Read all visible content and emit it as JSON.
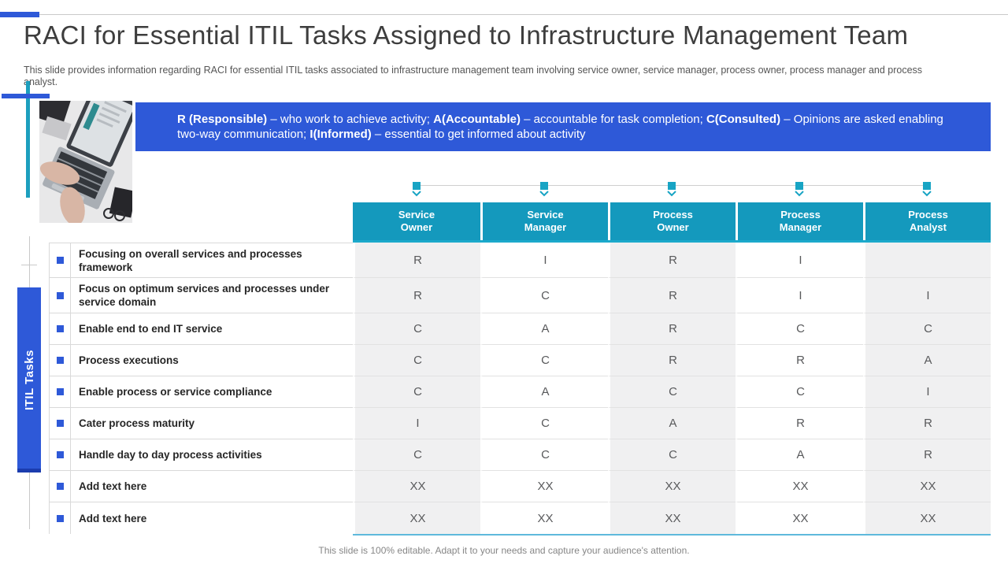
{
  "slide": {
    "title": "RACI for Essential ITIL Tasks Assigned to Infrastructure Management Team",
    "subtitle": "This slide provides information regarding RACI for essential ITIL tasks associated to infrastructure management team involving service owner, service manager, process owner, process manager and process analyst.",
    "footer": "This slide is 100% editable. Adapt it to your needs and capture your audience's attention."
  },
  "banner": {
    "parts": [
      {
        "bold": true,
        "text": "R (Responsible)"
      },
      {
        "bold": false,
        "text": " – who work to achieve activity; "
      },
      {
        "bold": true,
        "text": "A(Accountable)"
      },
      {
        "bold": false,
        "text": " – accountable for task completion; "
      },
      {
        "bold": true,
        "text": "C(Consulted)"
      },
      {
        "bold": false,
        "text": " – Opinions are asked enabling two-way communication; "
      },
      {
        "bold": true,
        "text": "I(Informed)"
      },
      {
        "bold": false,
        "text": " – essential to get informed about activity"
      }
    ]
  },
  "side_label": "ITIL Tasks",
  "table": {
    "columns": [
      {
        "line1": "Service",
        "line2": "Owner"
      },
      {
        "line1": "Service",
        "line2": "Manager"
      },
      {
        "line1": "Process",
        "line2": "Owner"
      },
      {
        "line1": "Process",
        "line2": "Manager"
      },
      {
        "line1": "Process",
        "line2": "Analyst"
      }
    ],
    "rows": [
      {
        "label": "Focusing on overall services and processes framework",
        "values": [
          "R",
          "I",
          "R",
          "I",
          ""
        ]
      },
      {
        "label": "Focus on optimum services and processes under service domain",
        "values": [
          "R",
          "C",
          "R",
          "I",
          "I"
        ]
      },
      {
        "label": "Enable end to end IT service",
        "values": [
          "C",
          "A",
          "R",
          "C",
          "C"
        ]
      },
      {
        "label": "Process executions",
        "values": [
          "C",
          "C",
          "R",
          "R",
          "A"
        ]
      },
      {
        "label": "Enable process or service compliance",
        "values": [
          "C",
          "A",
          "C",
          "C",
          "I"
        ]
      },
      {
        "label": "Cater process maturity",
        "values": [
          "I",
          "C",
          "A",
          "R",
          "R"
        ]
      },
      {
        "label": "Handle day to day process activities",
        "values": [
          "C",
          "C",
          "C",
          "A",
          "R"
        ]
      },
      {
        "label": "Add text here",
        "values": [
          "XX",
          "XX",
          "XX",
          "XX",
          "XX"
        ]
      },
      {
        "label": "Add text here",
        "values": [
          "XX",
          "XX",
          "XX",
          "XX",
          "XX"
        ]
      }
    ]
  },
  "colors": {
    "accent_blue": "#2E59D8",
    "header_teal": "#1499BD",
    "marker_teal": "#18A4C4",
    "bottom_rule_blue": "#5FB9DC"
  }
}
